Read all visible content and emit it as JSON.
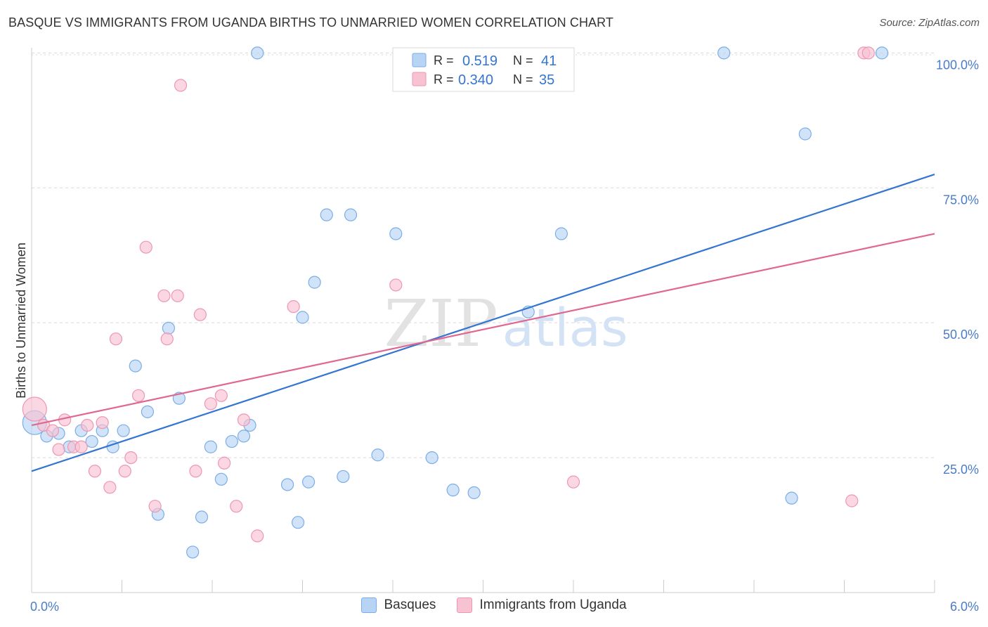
{
  "title": "BASQUE VS IMMIGRANTS FROM UGANDA BIRTHS TO UNMARRIED WOMEN CORRELATION CHART",
  "source": "Source: ZipAtlas.com",
  "watermark": {
    "zip": "ZIP",
    "atlas": "atlas"
  },
  "colors": {
    "blue_fill": "#b8d4f5",
    "blue_stroke": "#7aaee6",
    "blue_line": "#3375d1",
    "pink_fill": "#f7c2d2",
    "pink_stroke": "#ef96b2",
    "pink_line": "#e0678f",
    "axis_text": "#4a7cc7",
    "grid": "#d9d9d9"
  },
  "chart_data": {
    "type": "scatter",
    "title": "BASQUE VS IMMIGRANTS FROM UGANDA BIRTHS TO UNMARRIED WOMEN CORRELATION CHART",
    "xlabel": "",
    "ylabel": "Births to Unmarried Women",
    "xlim": [
      0,
      6
    ],
    "ylim": [
      0,
      102
    ],
    "x_tick_labels": [
      "0.0%",
      "6.0%"
    ],
    "y_ticks": [
      25,
      50,
      75,
      100
    ],
    "y_tick_labels": [
      "25.0%",
      "50.0%",
      "75.0%",
      "100.0%"
    ],
    "grid": true,
    "stats": [
      {
        "r_label": "R =",
        "r": "0.519",
        "n_label": "N =",
        "n": "41"
      },
      {
        "r_label": "R =",
        "r": "0.340",
        "n_label": "N =",
        "n": "35"
      }
    ],
    "series": [
      {
        "name": "Basques",
        "trend": {
          "x": [
            0,
            6
          ],
          "y": [
            22.5,
            77.5
          ]
        },
        "points": [
          {
            "x": 0.02,
            "y": 31.5,
            "size": "large"
          },
          {
            "x": 0.1,
            "y": 29.0
          },
          {
            "x": 0.18,
            "y": 29.5
          },
          {
            "x": 0.25,
            "y": 27.0
          },
          {
            "x": 0.33,
            "y": 30.0
          },
          {
            "x": 0.4,
            "y": 28.0
          },
          {
            "x": 0.47,
            "y": 30.0
          },
          {
            "x": 0.54,
            "y": 27.0
          },
          {
            "x": 0.61,
            "y": 30.0
          },
          {
            "x": 0.69,
            "y": 42.0
          },
          {
            "x": 0.77,
            "y": 33.5
          },
          {
            "x": 0.84,
            "y": 14.5
          },
          {
            "x": 0.91,
            "y": 49.0
          },
          {
            "x": 0.98,
            "y": 36.0
          },
          {
            "x": 1.07,
            "y": 7.5
          },
          {
            "x": 1.13,
            "y": 14.0
          },
          {
            "x": 1.19,
            "y": 27.0
          },
          {
            "x": 1.26,
            "y": 21.0
          },
          {
            "x": 1.33,
            "y": 28.0
          },
          {
            "x": 1.41,
            "y": 29.0
          },
          {
            "x": 1.45,
            "y": 31.0
          },
          {
            "x": 1.5,
            "y": 100.0
          },
          {
            "x": 1.7,
            "y": 20.0
          },
          {
            "x": 1.77,
            "y": 13.0
          },
          {
            "x": 1.8,
            "y": 51.0
          },
          {
            "x": 1.84,
            "y": 20.5
          },
          {
            "x": 1.88,
            "y": 57.5
          },
          {
            "x": 1.96,
            "y": 70.0
          },
          {
            "x": 2.07,
            "y": 21.5
          },
          {
            "x": 2.12,
            "y": 70.0
          },
          {
            "x": 2.3,
            "y": 25.5
          },
          {
            "x": 2.42,
            "y": 66.5
          },
          {
            "x": 2.66,
            "y": 25.0
          },
          {
            "x": 2.8,
            "y": 19.0
          },
          {
            "x": 2.94,
            "y": 18.5
          },
          {
            "x": 3.3,
            "y": 52.0
          },
          {
            "x": 3.52,
            "y": 66.5
          },
          {
            "x": 4.6,
            "y": 100.0
          },
          {
            "x": 5.05,
            "y": 17.5
          },
          {
            "x": 5.14,
            "y": 85.0
          },
          {
            "x": 5.65,
            "y": 100.0
          }
        ]
      },
      {
        "name": "Immigrants from Uganda",
        "trend": {
          "x": [
            0,
            6
          ],
          "y": [
            31.0,
            66.5
          ]
        },
        "points": [
          {
            "x": 0.02,
            "y": 34.0,
            "size": "large"
          },
          {
            "x": 0.08,
            "y": 31.0
          },
          {
            "x": 0.14,
            "y": 30.0
          },
          {
            "x": 0.18,
            "y": 26.5
          },
          {
            "x": 0.22,
            "y": 32.0
          },
          {
            "x": 0.28,
            "y": 27.0
          },
          {
            "x": 0.33,
            "y": 27.0
          },
          {
            "x": 0.37,
            "y": 31.0
          },
          {
            "x": 0.42,
            "y": 22.5
          },
          {
            "x": 0.47,
            "y": 31.5
          },
          {
            "x": 0.52,
            "y": 19.5
          },
          {
            "x": 0.56,
            "y": 47.0
          },
          {
            "x": 0.62,
            "y": 22.5
          },
          {
            "x": 0.66,
            "y": 25.0
          },
          {
            "x": 0.71,
            "y": 36.5
          },
          {
            "x": 0.76,
            "y": 64.0
          },
          {
            "x": 0.82,
            "y": 16.0
          },
          {
            "x": 0.88,
            "y": 55.0
          },
          {
            "x": 0.9,
            "y": 47.0
          },
          {
            "x": 0.97,
            "y": 55.0
          },
          {
            "x": 0.99,
            "y": 94.0
          },
          {
            "x": 1.09,
            "y": 22.5
          },
          {
            "x": 1.12,
            "y": 51.5
          },
          {
            "x": 1.19,
            "y": 35.0
          },
          {
            "x": 1.26,
            "y": 36.5
          },
          {
            "x": 1.28,
            "y": 24.0
          },
          {
            "x": 1.36,
            "y": 16.0
          },
          {
            "x": 1.41,
            "y": 32.0
          },
          {
            "x": 1.5,
            "y": 10.5
          },
          {
            "x": 1.74,
            "y": 53.0
          },
          {
            "x": 2.42,
            "y": 57.0
          },
          {
            "x": 3.6,
            "y": 20.5
          },
          {
            "x": 5.45,
            "y": 17.0
          },
          {
            "x": 5.53,
            "y": 100.0
          },
          {
            "x": 5.56,
            "y": 100.0
          }
        ]
      }
    ]
  }
}
